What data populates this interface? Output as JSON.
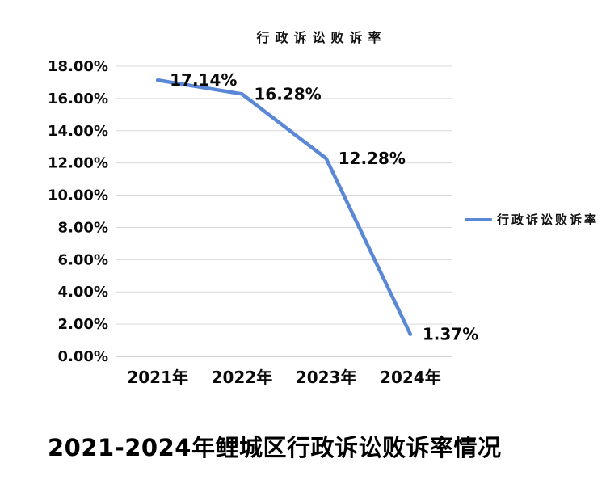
{
  "page": {
    "background": "#ffffff"
  },
  "chart_data": {
    "type": "line",
    "title": "行政诉讼败诉率",
    "categories": [
      "2021年",
      "2022年",
      "2023年",
      "2024年"
    ],
    "series": [
      {
        "name": "行政诉讼败诉率",
        "values": [
          17.14,
          16.28,
          12.28,
          1.37
        ],
        "color": "#5B88D6"
      }
    ],
    "data_labels": [
      "17.14%",
      "16.28%",
      "12.28%",
      "1.37%"
    ],
    "y_axis": {
      "min": 0,
      "max": 18,
      "step": 2,
      "tick_labels": [
        "0.00%",
        "2.00%",
        "4.00%",
        "6.00%",
        "8.00%",
        "10.00%",
        "12.00%",
        "14.00%",
        "16.00%",
        "18.00%"
      ]
    },
    "grid": true,
    "legend": {
      "position": "right",
      "label": "行政诉讼败诉率"
    },
    "colors": {
      "grid": "#d9d9d9",
      "axis": "#bfbfbf",
      "text": "#000000"
    }
  },
  "caption": "2021-2024年鲤城区行政诉讼败诉率情况"
}
